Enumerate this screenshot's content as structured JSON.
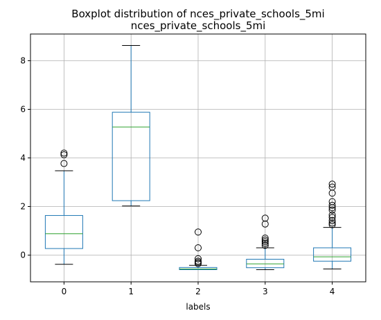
{
  "chart_data": {
    "type": "boxplot",
    "suptitle": "Boxplot distribution of nces_private_schools_5mi",
    "title": "nces_private_schools_5mi",
    "xlabel": "labels",
    "ylabel": "",
    "ylim": [
      -1.1,
      9.1
    ],
    "yticks": [
      0,
      2,
      4,
      6,
      8
    ],
    "grid": true,
    "categories": [
      "0",
      "1",
      "2",
      "3",
      "4"
    ],
    "boxes": [
      {
        "label": "0",
        "whisker_low": -0.38,
        "q1": 0.27,
        "median": 0.88,
        "q3": 1.63,
        "whisker_high": 3.47,
        "outliers": [
          3.77,
          4.13,
          4.2
        ]
      },
      {
        "label": "1",
        "whisker_low": 2.02,
        "q1": 2.24,
        "median": 5.27,
        "q3": 5.88,
        "whisker_high": 8.63,
        "outliers": []
      },
      {
        "label": "2",
        "whisker_low": -0.6,
        "q1": -0.6,
        "median": -0.57,
        "q3": -0.51,
        "whisker_high": -0.42,
        "outliers": [
          -0.35,
          -0.3,
          -0.25,
          -0.15,
          0.3,
          0.95
        ]
      },
      {
        "label": "3",
        "whisker_low": -0.6,
        "q1": -0.52,
        "median": -0.36,
        "q3": -0.17,
        "whisker_high": 0.3,
        "outliers": [
          0.4,
          0.48,
          0.55,
          0.62,
          0.7,
          1.28,
          1.52
        ]
      },
      {
        "label": "4",
        "whisker_low": -0.57,
        "q1": -0.25,
        "median": -0.07,
        "q3": 0.3,
        "whisker_high": 1.14,
        "outliers": [
          1.25,
          1.32,
          1.42,
          1.55,
          1.65,
          1.85,
          1.95,
          2.05,
          2.2,
          2.55,
          2.8,
          2.92
        ]
      }
    ],
    "colors": {
      "box": "#1f77b4",
      "median": "#2ca02c",
      "grid": "#b0b0b0",
      "whisker_cap": "#000000"
    }
  }
}
